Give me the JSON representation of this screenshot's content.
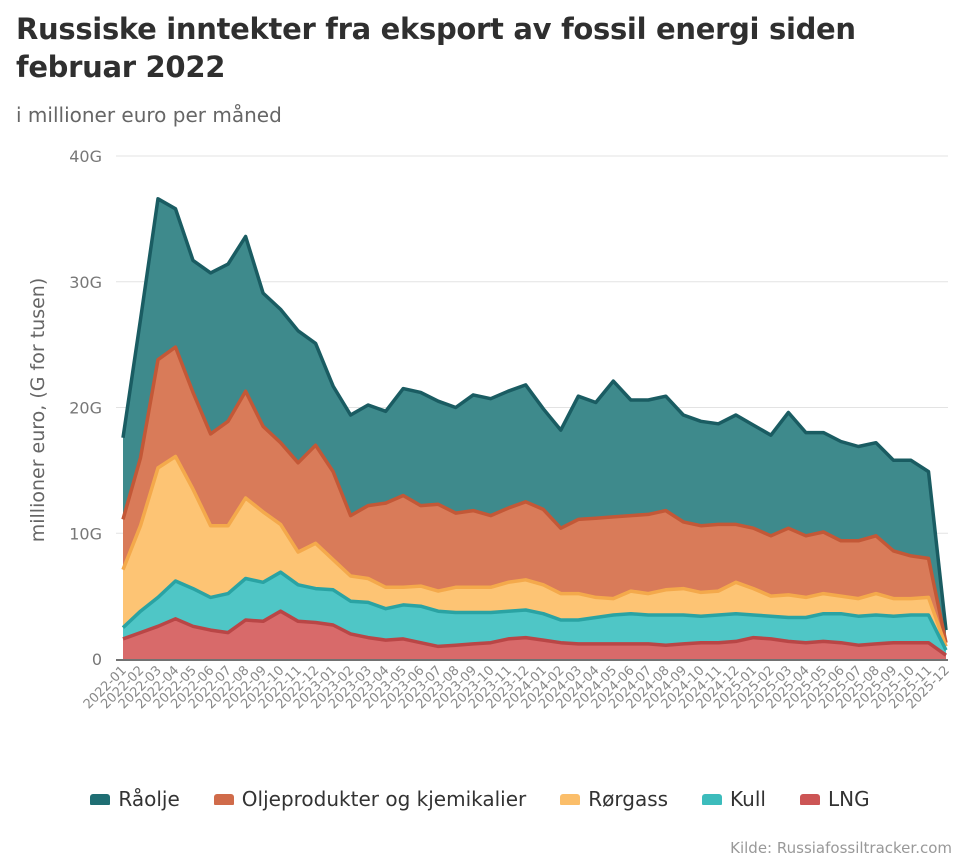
{
  "title": "Russiske inntekter fra eksport av fossil energi siden februar 2022",
  "subtitle": "i millioner euro per måned",
  "source": "Kilde: Russiafossiltracker.com",
  "chart_data": {
    "type": "area",
    "stacked": true,
    "title": "Russiske inntekter fra eksport av fossil energi siden februar 2022",
    "subtitle": "i millioner euro per måned",
    "xlabel": "",
    "ylabel": "millioner euro, (G for tusen)",
    "ylim": [
      0,
      40000
    ],
    "yticks": [
      0,
      10000,
      20000,
      30000,
      40000
    ],
    "ytick_labels": [
      "0",
      "10G",
      "20G",
      "30G",
      "40G"
    ],
    "grid": true,
    "legend_position": "bottom",
    "x": [
      "2022-01",
      "2022-02",
      "2022-03",
      "2022-04",
      "2022-05",
      "2022-06",
      "2022-07",
      "2022-08",
      "2022-09",
      "2022-10",
      "2022-11",
      "2022-12",
      "2023-01",
      "2023-02",
      "2023-03",
      "2023-04",
      "2023-05",
      "2023-06",
      "2023-07",
      "2023-08",
      "2023-09",
      "2023-10",
      "2023-11",
      "2023-12",
      "2024-01",
      "2024-02",
      "2024-03",
      "2024-04",
      "2024-05",
      "2024-06",
      "2024-07",
      "2024-08",
      "2024-09",
      "2024-10",
      "2024-11",
      "2024-12",
      "2025-01",
      "2025-02",
      "2025-03",
      "2025-04",
      "2025-05",
      "2025-06",
      "2025-07",
      "2025-08",
      "2025-09",
      "2025-10",
      "2025-11",
      "2025-12"
    ],
    "series": [
      {
        "name": "LNG",
        "fill": "#d86a6a",
        "line": "#b94646",
        "values": [
          1600,
          2100,
          2600,
          3200,
          2600,
          2300,
          2100,
          3100,
          3000,
          3800,
          3000,
          2900,
          2700,
          2000,
          1700,
          1500,
          1600,
          1300,
          1000,
          1100,
          1200,
          1300,
          1600,
          1700,
          1500,
          1300,
          1200,
          1200,
          1200,
          1200,
          1200,
          1100,
          1200,
          1300,
          1300,
          1400,
          1700,
          1600,
          1400,
          1300,
          1400,
          1300,
          1100,
          1200,
          1300,
          1300,
          1300,
          300
        ]
      },
      {
        "name": "Kull",
        "fill": "#4fc6c6",
        "line": "#2aa3a3",
        "values": [
          900,
          1700,
          2300,
          3000,
          3000,
          2600,
          3100,
          3300,
          3100,
          3100,
          2900,
          2700,
          2800,
          2600,
          2800,
          2500,
          2700,
          2900,
          2800,
          2600,
          2500,
          2400,
          2200,
          2200,
          2100,
          1800,
          1900,
          2100,
          2300,
          2400,
          2300,
          2400,
          2300,
          2100,
          2200,
          2200,
          1800,
          1800,
          1900,
          2000,
          2200,
          2300,
          2300,
          2300,
          2100,
          2200,
          2200,
          400
        ]
      },
      {
        "name": "Rørgass",
        "fill": "#fdc474",
        "line": "#f4a94b",
        "values": [
          4600,
          6800,
          10300,
          9900,
          7900,
          5700,
          5400,
          6400,
          5600,
          3800,
          2600,
          3600,
          2400,
          2000,
          1900,
          1700,
          1400,
          1600,
          1600,
          2000,
          2000,
          2000,
          2300,
          2400,
          2300,
          2100,
          2100,
          1600,
          1300,
          1800,
          1700,
          2000,
          2100,
          1900,
          1900,
          2500,
          2100,
          1600,
          1800,
          1600,
          1600,
          1400,
          1400,
          1700,
          1400,
          1300,
          1400,
          300
        ]
      },
      {
        "name": "Oljeprodukter og kjemikalier",
        "fill": "#d97b59",
        "line": "#c35837",
        "values": [
          4000,
          5400,
          8600,
          8700,
          7700,
          7300,
          8300,
          8500,
          6800,
          6500,
          7100,
          7800,
          7000,
          4800,
          5800,
          6700,
          7300,
          6400,
          6900,
          5900,
          6100,
          5700,
          5900,
          6200,
          6000,
          5200,
          5900,
          6300,
          6500,
          6000,
          6300,
          6300,
          5300,
          5300,
          5300,
          4600,
          4800,
          4800,
          5300,
          4900,
          4900,
          4400,
          4600,
          4600,
          3800,
          3400,
          3100,
          300
        ]
      },
      {
        "name": "Råolje",
        "fill": "#3e8a8c",
        "line": "#1a5c62",
        "values": [
          6500,
          11000,
          12800,
          11000,
          10500,
          12800,
          12500,
          12300,
          10600,
          10600,
          10500,
          8100,
          6800,
          8000,
          8000,
          7300,
          8500,
          9000,
          8200,
          8400,
          9200,
          9300,
          9300,
          9300,
          8000,
          7800,
          9800,
          9200,
          10800,
          9200,
          9100,
          9100,
          8500,
          8300,
          8000,
          8700,
          8200,
          8000,
          9200,
          8200,
          7900,
          7900,
          7500,
          7400,
          7200,
          7600,
          6900,
          1000
        ]
      }
    ]
  },
  "legend": [
    {
      "label": "Råolje",
      "color": "#1f6e73"
    },
    {
      "label": "Oljeprodukter og kjemikalier",
      "color": "#d06b4a"
    },
    {
      "label": "Rørgass",
      "color": "#fbbe6a"
    },
    {
      "label": "Kull",
      "color": "#3cbcbc"
    },
    {
      "label": "LNG",
      "color": "#cc5555"
    }
  ]
}
